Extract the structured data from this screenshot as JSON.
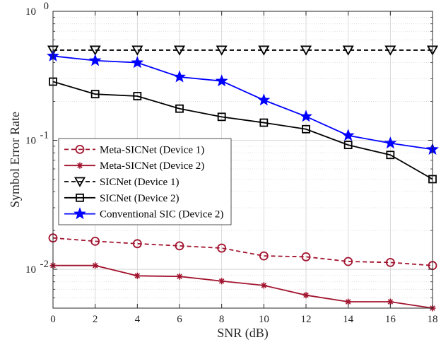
{
  "chart_data": {
    "type": "line",
    "xlabel": "SNR (dB)",
    "ylabel": "Symbol Error Rate",
    "xlim": [
      0,
      18
    ],
    "ylim": [
      0.005,
      1
    ],
    "yscale": "log",
    "grid": true,
    "minor_grid": true,
    "legend_position": "middle-left",
    "xticks": [
      0,
      2,
      4,
      6,
      8,
      10,
      12,
      14,
      16,
      18
    ],
    "x_tick_labels": [
      "0",
      "2",
      "4",
      "6",
      "8",
      "10",
      "12",
      "14",
      "16",
      "18"
    ],
    "yticks": [
      {
        "value": 1,
        "base": "10",
        "exp": "0"
      },
      {
        "value": 0.1,
        "base": "10",
        "exp": "-1"
      },
      {
        "value": 0.01,
        "base": "10",
        "exp": "-2"
      }
    ],
    "x": [
      0,
      2,
      4,
      6,
      8,
      10,
      12,
      14,
      16,
      18
    ],
    "series": [
      {
        "name": "Meta-SICNet (Device 1)",
        "color": "#a2142f",
        "dash": "dashed",
        "marker": "circle",
        "values": [
          0.0175,
          0.0165,
          0.0158,
          0.0152,
          0.0146,
          0.0127,
          0.0125,
          0.0115,
          0.0113,
          0.0107
        ]
      },
      {
        "name": "Meta-SICNet (Device 2)",
        "color": "#a2142f",
        "dash": "solid",
        "marker": "asterisk",
        "values": [
          0.0107,
          0.0107,
          0.0089,
          0.0088,
          0.0081,
          0.0075,
          0.0063,
          0.0056,
          0.0056,
          0.005
        ]
      },
      {
        "name": "SICNet (Device 1)",
        "color": "#000000",
        "dash": "dashed",
        "marker": "triangle-down",
        "values": [
          0.5,
          0.5,
          0.5,
          0.5,
          0.5,
          0.5,
          0.5,
          0.5,
          0.5,
          0.5
        ]
      },
      {
        "name": "SICNet (Device 2)",
        "color": "#000000",
        "dash": "solid",
        "marker": "square",
        "values": [
          0.285,
          0.228,
          0.22,
          0.176,
          0.152,
          0.137,
          0.122,
          0.092,
          0.077,
          0.05
        ]
      },
      {
        "name": "Conventional SIC (Device 2)",
        "color": "#0000ff",
        "dash": "solid",
        "marker": "star",
        "values": [
          0.45,
          0.415,
          0.4,
          0.31,
          0.288,
          0.205,
          0.153,
          0.109,
          0.095,
          0.085
        ]
      }
    ]
  }
}
